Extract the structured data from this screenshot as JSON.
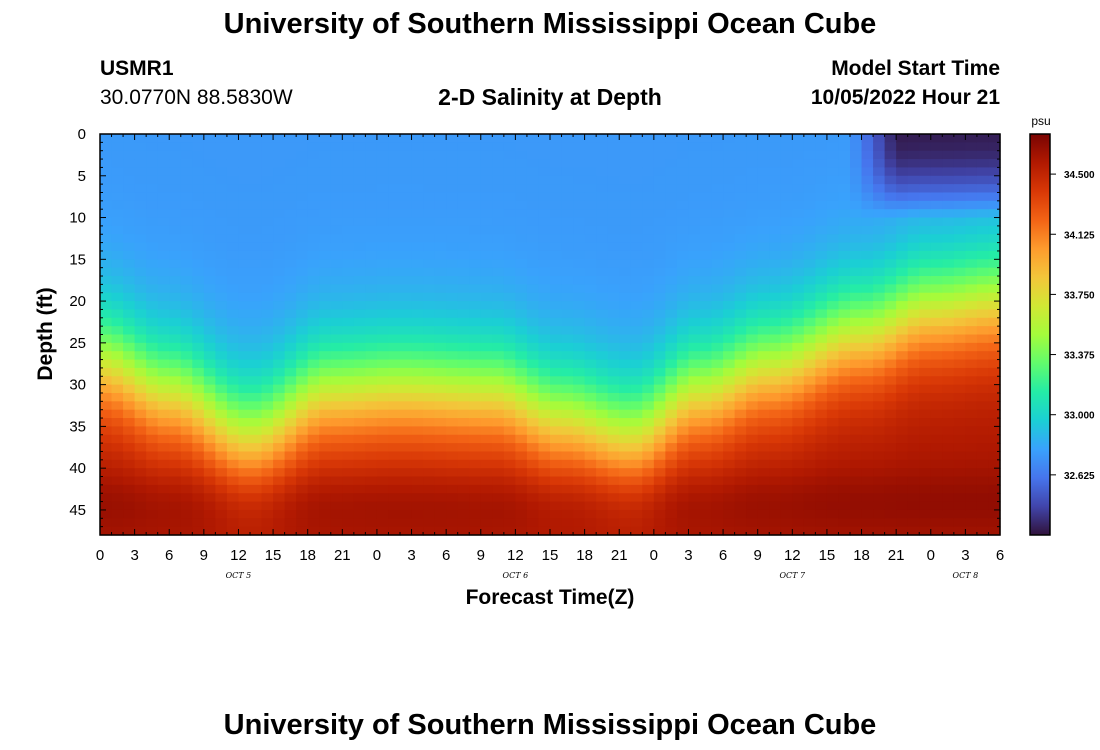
{
  "header": {
    "title": "University of Southern Mississippi Ocean Cube",
    "station": "USMR1",
    "location": "30.0770N  88.5830W",
    "subtitle": "2-D Salinity at Depth",
    "start_label": "Model Start Time",
    "start_value": "10/05/2022 Hour 21"
  },
  "footer": {
    "title": "University of Southern Mississippi Ocean Cube"
  },
  "chart_data": {
    "type": "heatmap",
    "title": "2-D Salinity at Depth",
    "xlabel": "Forecast Time(Z)",
    "ylabel": "Depth (ft)",
    "x_hours_range": [
      0,
      78
    ],
    "x_tick_labels": [
      "0",
      "3",
      "6",
      "9",
      "12",
      "15",
      "18",
      "21",
      "0",
      "3",
      "6",
      "9",
      "12",
      "15",
      "18",
      "21",
      "0",
      "3",
      "6",
      "9",
      "12",
      "15",
      "18",
      "21",
      "0",
      "3",
      "6"
    ],
    "day_labels": [
      "OCT 5",
      "OCT 6",
      "OCT 7",
      "OCT 8"
    ],
    "ylim": [
      0,
      48
    ],
    "y_ticks": [
      0,
      5,
      10,
      15,
      20,
      25,
      30,
      35,
      40,
      45
    ],
    "colorbar": {
      "unit": "psu",
      "ticks": [
        34.5,
        34.125,
        33.75,
        33.375,
        33.0,
        32.625
      ],
      "tick_labels": [
        "34.500",
        "34.125",
        "33.750",
        "33.375",
        "33.000",
        "32.625"
      ],
      "range": [
        32.25,
        34.75
      ],
      "colors": [
        "#30123b",
        "#4145ab",
        "#4675ed",
        "#39a2fc",
        "#1bcfd4",
        "#24eca6",
        "#61fc6c",
        "#a4fc3b",
        "#d1e834",
        "#f3c63a",
        "#fe9b2d",
        "#f36315",
        "#d93806",
        "#b11901",
        "#7a0402"
      ]
    },
    "halocline_depth_ft": [
      {
        "t": 0,
        "depth": 27.5
      },
      {
        "t": 6,
        "depth": 31
      },
      {
        "t": 13,
        "depth": 36
      },
      {
        "t": 20,
        "depth": 31
      },
      {
        "t": 26,
        "depth": 30.5
      },
      {
        "t": 34,
        "depth": 31
      },
      {
        "t": 40,
        "depth": 34
      },
      {
        "t": 46,
        "depth": 36
      },
      {
        "t": 52,
        "depth": 31
      },
      {
        "t": 58,
        "depth": 28
      },
      {
        "t": 66,
        "depth": 24
      },
      {
        "t": 72,
        "depth": 21
      },
      {
        "t": 78,
        "depth": 20
      }
    ],
    "surface_salinity_psu": 32.75,
    "bottom_salinity_psu": 34.6,
    "fresh_lens": {
      "t_start": 67,
      "t_end": 78,
      "depth_max": 10,
      "min_psu": 32.3
    }
  }
}
